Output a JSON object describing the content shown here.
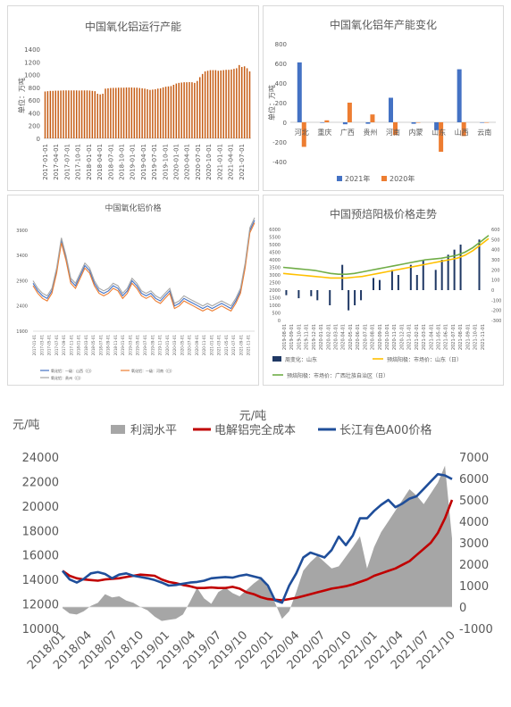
{
  "charts": [
    {
      "type": "bar",
      "title": "中国氧化铝运行产能",
      "ylabel": "单位：万吨",
      "ylim": [
        0,
        1400
      ],
      "yticks": [
        0,
        200,
        400,
        600,
        800,
        1000,
        1200,
        1400
      ],
      "xticks": [
        "2017-01-01",
        "2017-04-01",
        "2017-07-01",
        "2017-10-01",
        "2018-01-01",
        "2018-04-01",
        "2018-07-01",
        "2018-10-01",
        "2019-01-01",
        "2019-04-01",
        "2019-07-01",
        "2019-10-01",
        "2020-01-01",
        "2020-04-01",
        "2020-07-01",
        "2020-10-01",
        "2021-01-01",
        "2021-04-01",
        "2021-07-01"
      ],
      "color": "#c55a11",
      "values": [
        735,
        740,
        745,
        745,
        748,
        748,
        750,
        752,
        752,
        752,
        752,
        752,
        752,
        750,
        752,
        752,
        752,
        750,
        745,
        740,
        700,
        690,
        700,
        780,
        785,
        790,
        792,
        792,
        795,
        795,
        795,
        798,
        798,
        798,
        795,
        795,
        790,
        785,
        780,
        770,
        760,
        765,
        770,
        780,
        785,
        800,
        810,
        815,
        820,
        840,
        860,
        870,
        875,
        880,
        880,
        882,
        880,
        870,
        900,
        960,
        1010,
        1050,
        1060,
        1070,
        1070,
        1070,
        1060,
        1065,
        1070,
        1075,
        1075,
        1080,
        1090,
        1100,
        1150,
        1120,
        1130,
        1100,
        1050
      ]
    },
    {
      "type": "bar",
      "title": "中国氧化铝年产能变化",
      "ylabel": "单位：万吨",
      "ylim": [
        -400,
        800
      ],
      "yticks": [
        -400,
        -200,
        0,
        200,
        400,
        600,
        800
      ],
      "categories": [
        "河北",
        "重庆",
        "广西",
        "贵州",
        "河南",
        "内蒙",
        "山东",
        "山西",
        "云南"
      ],
      "series": [
        {
          "name": "2021年",
          "color": "#4472c4",
          "values": [
            610,
            -5,
            -20,
            -15,
            250,
            -15,
            -80,
            540,
            -5
          ]
        },
        {
          "name": "2020年",
          "color": "#ed7d31",
          "values": [
            -250,
            20,
            200,
            80,
            -130,
            0,
            -300,
            -140,
            0
          ]
        }
      ]
    },
    {
      "type": "line",
      "title": "中国氧化铝价格",
      "ylim": [
        1900,
        4200
      ],
      "yticks": [
        1900,
        2400,
        2900,
        3400,
        3900
      ],
      "xticks": [
        "2017-01-01",
        "2017-03-01",
        "2017-05-01",
        "2017-07-01",
        "2017-09-01",
        "2017-11-01",
        "2018-01-01",
        "2018-03-01",
        "2018-05-01",
        "2018-07-01",
        "2018-09-01",
        "2018-11-01",
        "2019-01-01",
        "2019-03-01",
        "2019-05-01",
        "2019-07-01",
        "2019-09-01",
        "2019-11-01",
        "2020-01-01",
        "2020-03-01",
        "2020-05-01",
        "2020-07-01",
        "2020-09-01",
        "2020-11-01",
        "2021-01-01",
        "2021-03-01",
        "2021-05-01",
        "2021-07-01",
        "2021-09-01",
        "2021-11-01"
      ],
      "series": [
        {
          "name": "氧化铝：一级：山西（日）",
          "color": "#4472c4",
          "values": [
            2850,
            2700,
            2600,
            2550,
            2700,
            3100,
            3700,
            3350,
            2900,
            2800,
            3000,
            3200,
            3100,
            2850,
            2700,
            2650,
            2700,
            2800,
            2750,
            2600,
            2700,
            2900,
            2800,
            2650,
            2600,
            2650,
            2550,
            2500,
            2600,
            2700,
            2400,
            2450,
            2550,
            2500,
            2450,
            2400,
            2350,
            2400,
            2350,
            2400,
            2450,
            2400,
            2350,
            2500,
            2700,
            3200,
            3900,
            4100
          ]
        },
        {
          "name": "氧化铝：一级：河南（日）",
          "color": "#ed7d31",
          "values": [
            2800,
            2650,
            2550,
            2500,
            2650,
            3050,
            3650,
            3300,
            2850,
            2750,
            2950,
            3150,
            3050,
            2800,
            2650,
            2600,
            2650,
            2750,
            2700,
            2550,
            2650,
            2850,
            2750,
            2600,
            2550,
            2600,
            2500,
            2450,
            2550,
            2650,
            2350,
            2400,
            2500,
            2450,
            2400,
            2350,
            2300,
            2350,
            2300,
            2350,
            2400,
            2350,
            2300,
            2450,
            2650,
            3150,
            3850,
            4050
          ]
        },
        {
          "name": "氧化铝：贵州（日）",
          "color": "#a5a5a5",
          "values": [
            2900,
            2750,
            2650,
            2600,
            2750,
            3150,
            3750,
            3400,
            2950,
            2850,
            3050,
            3250,
            3150,
            2900,
            2750,
            2700,
            2750,
            2850,
            2800,
            2650,
            2750,
            2950,
            2850,
            2700,
            2650,
            2700,
            2600,
            2550,
            2650,
            2750,
            2450,
            2500,
            2600,
            2550,
            2500,
            2450,
            2400,
            2450,
            2400,
            2450,
            2500,
            2450,
            2400,
            2550,
            2750,
            3250,
            3950,
            4150
          ]
        }
      ]
    },
    {
      "type": "bar",
      "title": "中国预焙阳极价格走势",
      "ylim_left": [
        0,
        6000
      ],
      "yticks_left": [
        0,
        500,
        1000,
        1500,
        2000,
        2500,
        3000,
        3500,
        4000,
        4500,
        5000,
        5500,
        6000
      ],
      "ylim_right": [
        -300,
        600
      ],
      "yticks_right": [
        -300,
        -200,
        -100,
        0,
        100,
        200,
        300,
        400,
        500,
        600
      ],
      "xticks": [
        "2019-08-01",
        "2019-09-01",
        "2019-10-01",
        "2019-11-01",
        "2019-12-01",
        "2020-01-01",
        "2020-02-01",
        "2020-03-01",
        "2020-04-01",
        "2020-05-01",
        "2020-06-01",
        "2020-07-01",
        "2020-08-01",
        "2020-09-01",
        "2020-10-01",
        "2020-11-01",
        "2020-12-01",
        "2021-01-01",
        "2021-02-01",
        "2021-03-01",
        "2021-04-01",
        "2021-05-01",
        "2021-06-01",
        "2021-07-01",
        "2021-08-01",
        "2021-09-01",
        "2021-10-01",
        "2021-11-01"
      ],
      "series": [
        {
          "name": "周变化：山东",
          "color": "#1f3864",
          "values": [
            -50,
            0,
            -80,
            0,
            -60,
            -100,
            0,
            -150,
            0,
            250,
            -200,
            -150,
            -100,
            0,
            120,
            100,
            0,
            200,
            150,
            0,
            250,
            150,
            300,
            0,
            200,
            300,
            350,
            400,
            450,
            0,
            0,
            500,
            0
          ]
        },
        {
          "name": "预焙阳极：市场价：山东（日）",
          "color": "#ffc000",
          "values": [
            3100,
            3050,
            3000,
            2950,
            2900,
            2850,
            2800,
            2800,
            2800,
            2850,
            2900,
            3000,
            3100,
            3200,
            3300,
            3400,
            3500,
            3600,
            3700,
            3800,
            3900,
            4000,
            4100,
            4300,
            4600,
            5000,
            5400
          ]
        },
        {
          "name": "预焙阳极：市场价：广西壮族自治区（日）",
          "color": "#70ad47",
          "values": [
            3500,
            3450,
            3400,
            3350,
            3300,
            3200,
            3100,
            3050,
            3050,
            3100,
            3200,
            3300,
            3400,
            3500,
            3600,
            3700,
            3800,
            3900,
            4000,
            4050,
            4100,
            4200,
            4300,
            4500,
            4800,
            5200,
            5600
          ]
        }
      ]
    },
    {
      "type": "area",
      "yunit_left": "元/吨",
      "yunit_right": "元/吨",
      "ylim_left": [
        10000,
        24000
      ],
      "yticks_left": [
        10000,
        12000,
        14000,
        16000,
        18000,
        20000,
        22000,
        24000
      ],
      "ylim_right": [
        -1000,
        7000
      ],
      "yticks_right": [
        -1000,
        0,
        1000,
        2000,
        3000,
        4000,
        5000,
        6000,
        7000
      ],
      "xticks": [
        "2018/01",
        "2018/04",
        "2018/07",
        "2018/10",
        "2019/01",
        "2019/04",
        "2019/07",
        "2019/10",
        "2020/01",
        "2020/04",
        "2020/07",
        "2020/10",
        "2021/01",
        "2021/04",
        "2021/07",
        "2021/10"
      ],
      "series": [
        {
          "name": "利润水平",
          "color": "#a6a6a6",
          "axis": "right",
          "values": [
            -50,
            -300,
            -350,
            -200,
            50,
            200,
            600,
            450,
            500,
            300,
            200,
            0,
            -150,
            -450,
            -650,
            -600,
            -550,
            -350,
            250,
            900,
            400,
            150,
            700,
            900,
            650,
            500,
            800,
            1100,
            1350,
            900,
            200,
            -550,
            -200,
            700,
            1700,
            2100,
            2400,
            2100,
            1800,
            1900,
            2350,
            2800,
            3300,
            1800,
            2800,
            3500,
            4000,
            4500,
            5000,
            5500,
            5200,
            4800,
            5300,
            5800,
            6600,
            3200
          ]
        },
        {
          "name": "电解铝完全成本",
          "color": "#c00000",
          "axis": "left",
          "values": [
            14700,
            14300,
            14100,
            14000,
            13950,
            13900,
            14000,
            14050,
            14100,
            14200,
            14300,
            14400,
            14350,
            14300,
            14000,
            13800,
            13700,
            13550,
            13450,
            13300,
            13300,
            13350,
            13300,
            13300,
            13400,
            13250,
            12950,
            12800,
            12550,
            12400,
            12350,
            12300,
            12400,
            12500,
            12650,
            12800,
            12950,
            13100,
            13250,
            13350,
            13450,
            13600,
            13800,
            14000,
            14300,
            14500,
            14700,
            14900,
            15200,
            15500,
            16000,
            16500,
            17000,
            17800,
            19000,
            20500
          ]
        },
        {
          "name": "长江有色A00价格",
          "color": "#1f4e9a",
          "axis": "left",
          "values": [
            14700,
            14000,
            13750,
            14050,
            14500,
            14600,
            14450,
            14100,
            14400,
            14500,
            14300,
            14200,
            14100,
            13950,
            13750,
            13500,
            13550,
            13650,
            13750,
            13800,
            13900,
            14100,
            14150,
            14200,
            14150,
            14300,
            14400,
            14250,
            14100,
            13500,
            12300,
            12100,
            13500,
            14500,
            15800,
            16200,
            16000,
            15800,
            16400,
            17500,
            16800,
            17600,
            19000,
            19000,
            19600,
            20100,
            20500,
            19900,
            20200,
            20600,
            20800,
            21400,
            22000,
            22600,
            22500,
            22200
          ]
        }
      ]
    }
  ]
}
